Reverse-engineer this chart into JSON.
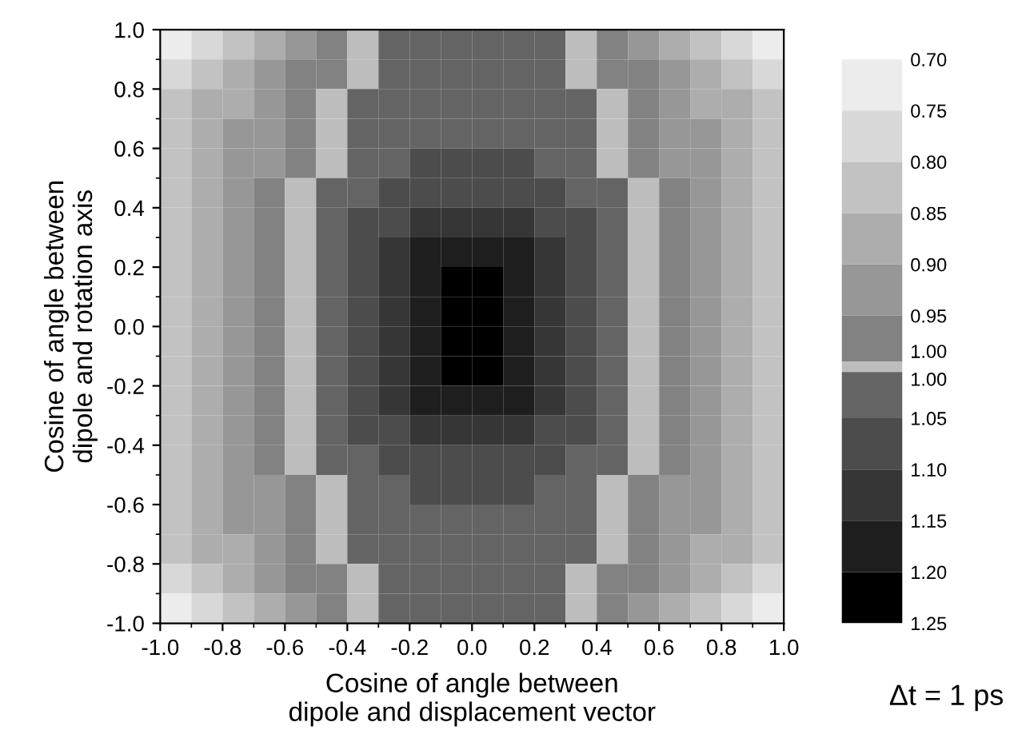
{
  "chart_data": {
    "type": "heatmap",
    "xlabel": "Cosine of angle between\ndipole and displacement vector",
    "ylabel": "Cosine of angle between\ndipole and rotation axis",
    "annotations": [
      "Δt = 1 ps"
    ],
    "xlim": [
      -1.0,
      1.0
    ],
    "ylim": [
      -1.0,
      1.0
    ],
    "xticks": [
      {
        "value": -1.0,
        "label": "-1.0"
      },
      -0.8,
      -0.6,
      -0.4,
      -0.2,
      {
        "value": 0.0,
        "label": "0.0"
      },
      0.2,
      0.4,
      0.6,
      0.8,
      {
        "value": 1.0,
        "label": "1.0"
      }
    ],
    "yticks": [
      {
        "value": -1.0,
        "label": "-1.0"
      },
      -0.8,
      -0.6,
      -0.4,
      -0.2,
      {
        "value": 0.0,
        "label": "0.0"
      },
      0.2,
      0.4,
      0.6,
      0.8,
      {
        "value": 1.0,
        "label": "1.0"
      }
    ],
    "clim": [
      1.25,
      0.7
    ],
    "cticks": [
      {
        "value": 0.7,
        "label": "0.70"
      },
      {
        "value": 0.75,
        "label": "0.75"
      },
      {
        "value": 0.8,
        "label": "0.80"
      },
      {
        "value": 0.85,
        "label": "0.85"
      },
      {
        "value": 0.9,
        "label": "0.90"
      },
      {
        "value": 0.95,
        "label": "0.95"
      },
      {
        "value": 0.995,
        "label": "1.00"
      },
      {
        "value": 1.005,
        "label": "1.00"
      },
      {
        "value": 1.05,
        "label": "1.05"
      },
      {
        "value": 1.1,
        "label": "1.10"
      },
      {
        "value": 1.15,
        "label": "1.15"
      },
      {
        "value": 1.2,
        "label": "1.20"
      },
      {
        "value": 1.25,
        "label": "1.25"
      }
    ],
    "cells": [
      [
        0.72,
        0.78,
        0.82,
        0.88,
        0.92,
        0.98,
        1.0,
        1.02,
        1.02,
        1.02,
        1.02,
        1.02,
        1.02,
        1.0,
        0.98,
        0.92,
        0.88,
        0.82,
        0.78,
        0.72
      ],
      [
        0.78,
        0.82,
        0.88,
        0.92,
        0.98,
        0.98,
        1.0,
        1.02,
        1.02,
        1.02,
        1.02,
        1.02,
        1.02,
        1.0,
        0.98,
        0.98,
        0.92,
        0.88,
        0.82,
        0.78
      ],
      [
        0.82,
        0.88,
        0.88,
        0.92,
        0.98,
        1.0,
        1.02,
        1.02,
        1.02,
        1.02,
        1.02,
        1.02,
        1.02,
        1.02,
        1.0,
        0.98,
        0.92,
        0.88,
        0.88,
        0.82
      ],
      [
        0.82,
        0.88,
        0.92,
        0.92,
        0.98,
        1.0,
        1.02,
        1.02,
        1.02,
        1.02,
        1.02,
        1.02,
        1.02,
        1.02,
        1.0,
        0.98,
        0.92,
        0.92,
        0.88,
        0.82
      ],
      [
        0.82,
        0.88,
        0.92,
        0.92,
        0.98,
        1.0,
        1.02,
        1.02,
        1.08,
        1.08,
        1.08,
        1.08,
        1.02,
        1.02,
        1.0,
        0.98,
        0.92,
        0.92,
        0.88,
        0.82
      ],
      [
        0.82,
        0.88,
        0.92,
        0.98,
        1.0,
        1.02,
        1.02,
        1.08,
        1.08,
        1.08,
        1.08,
        1.08,
        1.08,
        1.02,
        1.02,
        1.0,
        0.98,
        0.92,
        0.88,
        0.82
      ],
      [
        0.82,
        0.88,
        0.92,
        0.98,
        1.0,
        1.02,
        1.08,
        1.08,
        1.12,
        1.12,
        1.12,
        1.12,
        1.08,
        1.08,
        1.02,
        1.0,
        0.98,
        0.92,
        0.88,
        0.82
      ],
      [
        0.82,
        0.88,
        0.92,
        0.98,
        1.0,
        1.02,
        1.08,
        1.12,
        1.18,
        1.18,
        1.18,
        1.18,
        1.12,
        1.08,
        1.02,
        1.0,
        0.98,
        0.92,
        0.88,
        0.82
      ],
      [
        0.82,
        0.88,
        0.92,
        0.98,
        1.0,
        1.02,
        1.08,
        1.12,
        1.18,
        1.22,
        1.22,
        1.18,
        1.12,
        1.08,
        1.02,
        1.0,
        0.98,
        0.92,
        0.88,
        0.82
      ],
      [
        0.82,
        0.88,
        0.92,
        0.98,
        1.0,
        1.02,
        1.08,
        1.12,
        1.18,
        1.22,
        1.22,
        1.18,
        1.12,
        1.08,
        1.02,
        1.0,
        0.98,
        0.92,
        0.88,
        0.82
      ],
      [
        0.82,
        0.88,
        0.92,
        0.98,
        1.0,
        1.02,
        1.08,
        1.12,
        1.18,
        1.22,
        1.22,
        1.18,
        1.12,
        1.08,
        1.02,
        1.0,
        0.98,
        0.92,
        0.88,
        0.82
      ],
      [
        0.82,
        0.88,
        0.92,
        0.98,
        1.0,
        1.02,
        1.08,
        1.12,
        1.18,
        1.22,
        1.22,
        1.18,
        1.12,
        1.08,
        1.02,
        1.0,
        0.98,
        0.92,
        0.88,
        0.82
      ],
      [
        0.82,
        0.88,
        0.92,
        0.98,
        1.0,
        1.02,
        1.08,
        1.12,
        1.18,
        1.18,
        1.18,
        1.18,
        1.12,
        1.08,
        1.02,
        1.0,
        0.98,
        0.92,
        0.88,
        0.82
      ],
      [
        0.82,
        0.88,
        0.92,
        0.98,
        1.0,
        1.02,
        1.08,
        1.08,
        1.12,
        1.12,
        1.12,
        1.12,
        1.08,
        1.08,
        1.02,
        1.0,
        0.98,
        0.92,
        0.88,
        0.82
      ],
      [
        0.82,
        0.88,
        0.92,
        0.98,
        1.0,
        1.02,
        1.02,
        1.08,
        1.08,
        1.08,
        1.08,
        1.08,
        1.08,
        1.02,
        1.02,
        1.0,
        0.98,
        0.92,
        0.88,
        0.82
      ],
      [
        0.82,
        0.88,
        0.92,
        0.92,
        0.98,
        1.0,
        1.02,
        1.02,
        1.08,
        1.08,
        1.08,
        1.08,
        1.02,
        1.02,
        1.0,
        0.98,
        0.92,
        0.92,
        0.88,
        0.82
      ],
      [
        0.82,
        0.88,
        0.92,
        0.92,
        0.98,
        1.0,
        1.02,
        1.02,
        1.02,
        1.02,
        1.02,
        1.02,
        1.02,
        1.02,
        1.0,
        0.98,
        0.92,
        0.92,
        0.88,
        0.82
      ],
      [
        0.82,
        0.88,
        0.88,
        0.92,
        0.98,
        1.0,
        1.02,
        1.02,
        1.02,
        1.02,
        1.02,
        1.02,
        1.02,
        1.02,
        1.0,
        0.98,
        0.92,
        0.88,
        0.88,
        0.82
      ],
      [
        0.78,
        0.82,
        0.88,
        0.92,
        0.98,
        0.98,
        1.0,
        1.02,
        1.02,
        1.02,
        1.02,
        1.02,
        1.02,
        1.0,
        0.98,
        0.98,
        0.92,
        0.88,
        0.82,
        0.78
      ],
      [
        0.72,
        0.78,
        0.82,
        0.88,
        0.92,
        0.98,
        1.0,
        1.02,
        1.02,
        1.02,
        1.02,
        1.02,
        1.02,
        1.0,
        0.98,
        0.92,
        0.88,
        0.82,
        0.78,
        0.72
      ]
    ]
  }
}
